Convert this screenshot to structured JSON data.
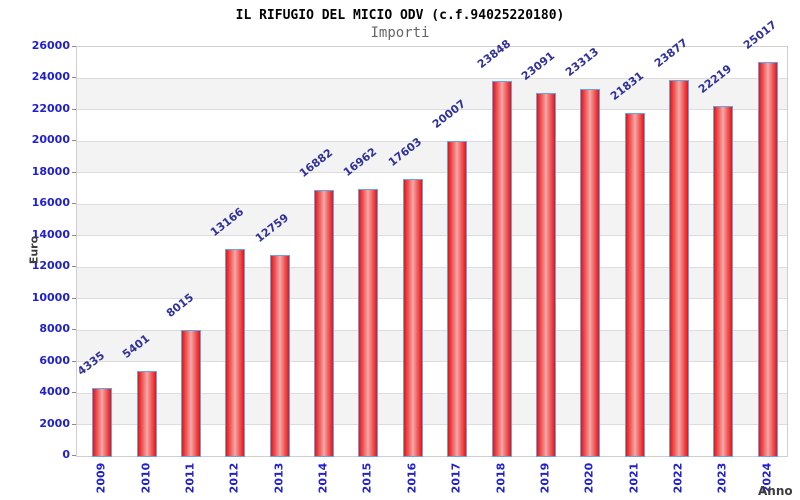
{
  "header": {
    "title": "IL RIFUGIO DEL MICIO ODV (c.f.94025220180)",
    "subtitle": "Importi"
  },
  "chart_data": {
    "type": "bar",
    "title": "IL RIFUGIO DEL MICIO ODV (c.f.94025220180)",
    "subtitle": "Importi",
    "xlabel": "Anno",
    "ylabel": "Euro",
    "categories": [
      "2009",
      "2010",
      "2011",
      "2012",
      "2013",
      "2014",
      "2015",
      "2016",
      "2017",
      "2018",
      "2019",
      "2020",
      "2021",
      "2022",
      "2023",
      "2024"
    ],
    "values": [
      4335,
      5401,
      8015,
      13166,
      12759,
      16882,
      16962,
      17603,
      20007,
      23848,
      23091,
      23313,
      21831,
      23877,
      22219,
      25017
    ],
    "ylim": [
      0,
      26000
    ],
    "ytick_step": 2000,
    "grid": true,
    "legend": "none",
    "colors": {
      "bar_edge": "#e51414",
      "bar_center": "#f7a8a8",
      "bar_border": "#6aa2e8",
      "tick_label": "#2020d0",
      "value_label": "#30309a",
      "band_gray": "#f3f3f3",
      "gridline": "#dcdcdc",
      "axis_title": "#3d3d3d"
    }
  }
}
